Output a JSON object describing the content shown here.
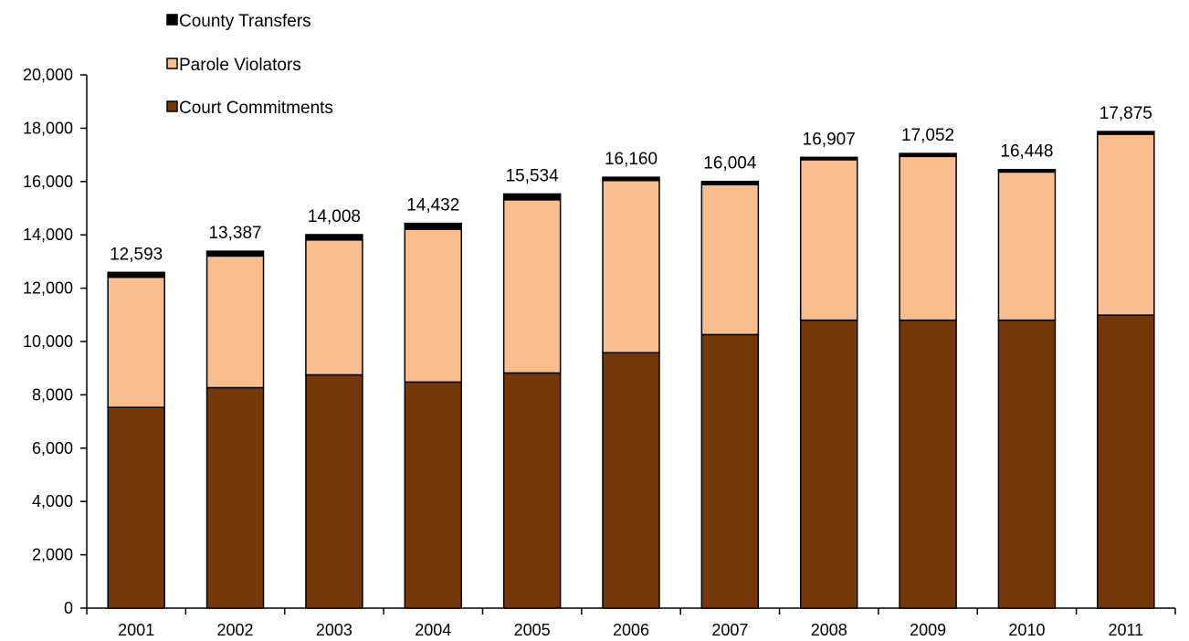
{
  "chart_data": {
    "type": "bar",
    "stacked": true,
    "categories": [
      "2001",
      "2002",
      "2003",
      "2004",
      "2005",
      "2006",
      "2007",
      "2008",
      "2009",
      "2010",
      "2011"
    ],
    "series": [
      {
        "name": "Court Commitments",
        "color": "#74380b",
        "values": [
          7530,
          8270,
          8750,
          8480,
          8820,
          9580,
          10260,
          10800,
          10800,
          10800,
          10990
        ]
      },
      {
        "name": "Parole Violators",
        "color": "#f9be90",
        "values": [
          4883,
          4937,
          5058,
          5732,
          6494,
          6460,
          5624,
          6017,
          6142,
          5558,
          6785
        ]
      },
      {
        "name": "County Transfers",
        "color": "#000000",
        "values": [
          180,
          180,
          200,
          220,
          220,
          120,
          120,
          90,
          110,
          90,
          100
        ]
      }
    ],
    "totals": [
      "12,593",
      "13,387",
      "14,008",
      "14,432",
      "15,534",
      "16,160",
      "16,004",
      "16,907",
      "17,052",
      "16,448",
      "17,875"
    ],
    "yticks": [
      "0",
      "2,000",
      "4,000",
      "6,000",
      "8,000",
      "10,000",
      "12,000",
      "14,000",
      "16,000",
      "18,000",
      "20,000"
    ],
    "ylim": [
      0,
      20000
    ],
    "legend": [
      "County Transfers",
      "Parole Violators",
      "Court Commitments"
    ],
    "legend_position": "top-left",
    "grid": false,
    "title": "",
    "xlabel": "",
    "ylabel": ""
  }
}
